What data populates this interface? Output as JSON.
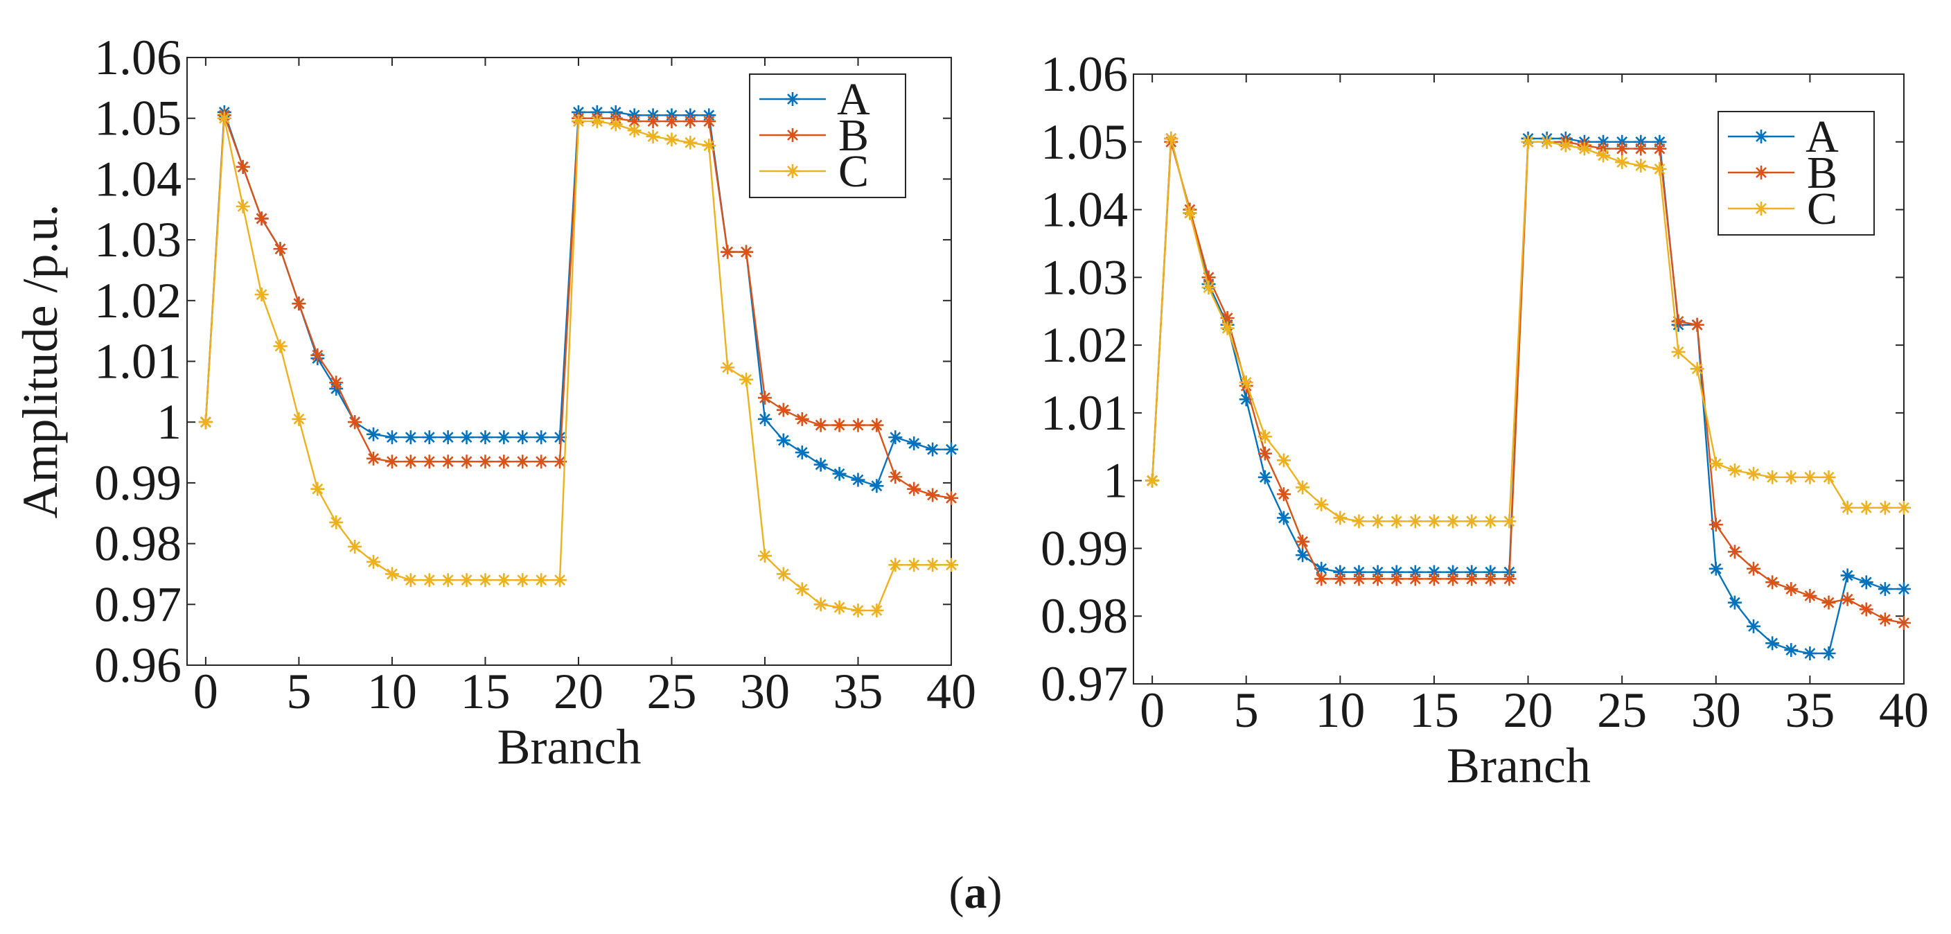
{
  "caption": {
    "open": "(",
    "letter": "a",
    "close": ")"
  },
  "colors": {
    "A": "#0072BD",
    "B": "#D95319",
    "C": "#EDB120"
  },
  "chart_data": [
    {
      "type": "line",
      "xlabel": "Branch",
      "ylabel": "Amplitude /p.u.",
      "xlim": [
        -1,
        40
      ],
      "ylim": [
        0.96,
        1.06
      ],
      "xticks": [
        0,
        5,
        10,
        15,
        20,
        25,
        30,
        35,
        40
      ],
      "yticks": [
        0.96,
        0.97,
        0.98,
        0.99,
        1,
        1.01,
        1.02,
        1.03,
        1.04,
        1.05,
        1.06
      ],
      "ytick_labels": [
        "0.96",
        "0.97",
        "0.98",
        "0.99",
        "1",
        "1.01",
        "1.02",
        "1.03",
        "1.04",
        "1.05",
        "1.06"
      ],
      "legend": [
        "A",
        "B",
        "C"
      ],
      "legend_position": "top-right",
      "x": [
        0,
        1,
        2,
        3,
        4,
        5,
        6,
        7,
        8,
        9,
        10,
        11,
        12,
        13,
        14,
        15,
        16,
        17,
        18,
        19,
        20,
        21,
        22,
        23,
        24,
        25,
        26,
        27,
        28,
        29,
        30,
        31,
        32,
        33,
        34,
        35,
        36,
        37,
        38,
        39,
        40
      ],
      "series": [
        {
          "name": "A",
          "values": [
            1.0,
            1.051,
            1.042,
            1.0335,
            1.0285,
            1.0195,
            1.0105,
            1.0055,
            1.0,
            0.998,
            0.9975,
            0.9975,
            0.9975,
            0.9975,
            0.9975,
            0.9975,
            0.9975,
            0.9975,
            0.9975,
            0.9975,
            1.051,
            1.051,
            1.051,
            1.0505,
            1.0505,
            1.0505,
            1.0505,
            1.0505,
            1.028,
            1.028,
            1.0005,
            0.997,
            0.995,
            0.993,
            0.9915,
            0.9905,
            0.9895,
            0.9975,
            0.9965,
            0.9955,
            0.9955
          ]
        },
        {
          "name": "B",
          "values": [
            1.0,
            1.0505,
            1.042,
            1.0335,
            1.0285,
            1.0195,
            1.011,
            1.0065,
            1.0,
            0.994,
            0.9935,
            0.9935,
            0.9935,
            0.9935,
            0.9935,
            0.9935,
            0.9935,
            0.9935,
            0.9935,
            0.9935,
            1.05,
            1.05,
            1.05,
            1.0495,
            1.0495,
            1.0495,
            1.0495,
            1.0495,
            1.028,
            1.028,
            1.004,
            1.002,
            1.0005,
            0.9995,
            0.9995,
            0.9995,
            0.9995,
            0.991,
            0.989,
            0.988,
            0.9875
          ]
        },
        {
          "name": "C",
          "values": [
            1.0,
            1.05,
            1.0355,
            1.021,
            1.0125,
            1.0005,
            0.989,
            0.9835,
            0.9795,
            0.977,
            0.975,
            0.974,
            0.974,
            0.974,
            0.974,
            0.974,
            0.974,
            0.974,
            0.974,
            0.974,
            1.0495,
            1.0495,
            1.049,
            1.048,
            1.047,
            1.0465,
            1.046,
            1.0455,
            1.009,
            1.007,
            0.978,
            0.975,
            0.9725,
            0.97,
            0.9695,
            0.969,
            0.969,
            0.9765,
            0.9765,
            0.9765,
            0.9765
          ]
        }
      ]
    },
    {
      "type": "line",
      "xlabel": "Branch",
      "ylabel": "",
      "xlim": [
        -1,
        40
      ],
      "ylim": [
        0.97,
        1.06
      ],
      "xticks": [
        0,
        5,
        10,
        15,
        20,
        25,
        30,
        35,
        40
      ],
      "yticks": [
        0.97,
        0.98,
        0.99,
        1,
        1.01,
        1.02,
        1.03,
        1.04,
        1.05,
        1.06
      ],
      "ytick_labels": [
        "0.97",
        "0.98",
        "0.99",
        "1",
        "1.01",
        "1.02",
        "1.03",
        "1.04",
        "1.05",
        "1.06"
      ],
      "legend": [
        "A",
        "B",
        "C"
      ],
      "legend_position": "top-right",
      "x": [
        0,
        1,
        2,
        3,
        4,
        5,
        6,
        7,
        8,
        9,
        10,
        11,
        12,
        13,
        14,
        15,
        16,
        17,
        18,
        19,
        20,
        21,
        22,
        23,
        24,
        25,
        26,
        27,
        28,
        29,
        30,
        31,
        32,
        33,
        34,
        35,
        36,
        37,
        38,
        39,
        40
      ],
      "series": [
        {
          "name": "A",
          "values": [
            1.0,
            1.0505,
            1.0395,
            1.029,
            1.023,
            1.012,
            1.0005,
            0.9945,
            0.989,
            0.987,
            0.9865,
            0.9865,
            0.9865,
            0.9865,
            0.9865,
            0.9865,
            0.9865,
            0.9865,
            0.9865,
            0.9865,
            1.0505,
            1.0505,
            1.0505,
            1.05,
            1.05,
            1.05,
            1.05,
            1.05,
            1.023,
            1.023,
            0.987,
            0.982,
            0.9785,
            0.976,
            0.975,
            0.9745,
            0.9745,
            0.986,
            0.985,
            0.984,
            0.984
          ]
        },
        {
          "name": "B",
          "values": [
            1.0,
            1.05,
            1.04,
            1.03,
            1.024,
            1.014,
            1.004,
            0.998,
            0.991,
            0.9855,
            0.9855,
            0.9855,
            0.9855,
            0.9855,
            0.9855,
            0.9855,
            0.9855,
            0.9855,
            0.9855,
            0.9855,
            1.05,
            1.05,
            1.05,
            1.0495,
            1.049,
            1.049,
            1.049,
            1.049,
            1.0235,
            1.023,
            0.9935,
            0.9895,
            0.987,
            0.985,
            0.984,
            0.983,
            0.982,
            0.9825,
            0.981,
            0.9795,
            0.979
          ]
        },
        {
          "name": "C",
          "values": [
            1.0,
            1.0505,
            1.0395,
            1.0285,
            1.0225,
            1.0145,
            1.0065,
            1.003,
            0.999,
            0.9965,
            0.9945,
            0.994,
            0.994,
            0.994,
            0.994,
            0.994,
            0.994,
            0.994,
            0.994,
            0.994,
            1.05,
            1.05,
            1.0495,
            1.049,
            1.048,
            1.047,
            1.0465,
            1.046,
            1.019,
            1.0165,
            1.0025,
            1.0015,
            1.001,
            1.0005,
            1.0005,
            1.0005,
            1.0005,
            0.996,
            0.996,
            0.996,
            0.996
          ]
        }
      ]
    }
  ]
}
